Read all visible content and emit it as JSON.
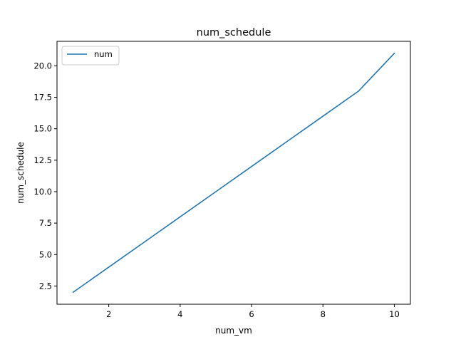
{
  "chart_data": {
    "type": "line",
    "title": "num_schedule",
    "xlabel": "num_vm",
    "ylabel": "num_schedule",
    "x": [
      1,
      2,
      3,
      4,
      5,
      6,
      7,
      8,
      9,
      10
    ],
    "series": [
      {
        "name": "num",
        "color": "#1f77b4",
        "values": [
          2,
          4,
          6,
          8,
          10,
          12,
          14,
          16,
          18,
          21
        ]
      }
    ],
    "xlim": [
      0.55,
      10.45
    ],
    "ylim": [
      1.05,
      21.95
    ],
    "xticks": [
      2,
      4,
      6,
      8,
      10
    ],
    "xtick_labels": [
      "2",
      "4",
      "6",
      "8",
      "10"
    ],
    "yticks": [
      2.5,
      5.0,
      7.5,
      10.0,
      12.5,
      15.0,
      17.5,
      20.0
    ],
    "ytick_labels": [
      "2.5",
      "5.0",
      "7.5",
      "10.0",
      "12.5",
      "15.0",
      "17.5",
      "20.0"
    ],
    "grid": false,
    "legend": {
      "position": "upper-left",
      "entries": [
        "num"
      ]
    }
  }
}
